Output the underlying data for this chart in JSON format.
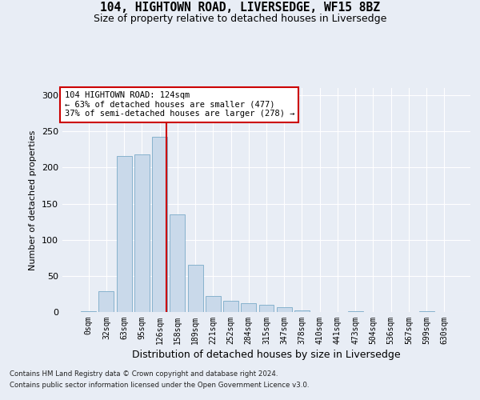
{
  "title1": "104, HIGHTOWN ROAD, LIVERSEDGE, WF15 8BZ",
  "title2": "Size of property relative to detached houses in Liversedge",
  "xlabel": "Distribution of detached houses by size in Liversedge",
  "ylabel": "Number of detached properties",
  "categories": [
    "0sqm",
    "32sqm",
    "63sqm",
    "95sqm",
    "126sqm",
    "158sqm",
    "189sqm",
    "221sqm",
    "252sqm",
    "284sqm",
    "315sqm",
    "347sqm",
    "378sqm",
    "410sqm",
    "441sqm",
    "473sqm",
    "504sqm",
    "536sqm",
    "567sqm",
    "599sqm",
    "630sqm"
  ],
  "bar_values": [
    1,
    29,
    216,
    218,
    243,
    135,
    65,
    22,
    16,
    12,
    10,
    7,
    2,
    0,
    0,
    1,
    0,
    0,
    0,
    1,
    0
  ],
  "bar_color": "#c9d9ea",
  "bar_edge_color": "#7aaac8",
  "bg_color": "#e8edf5",
  "grid_color": "#ffffff",
  "vline_color": "#cc0000",
  "annotation_line1": "104 HIGHTOWN ROAD: 124sqm",
  "annotation_line2": "← 63% of detached houses are smaller (477)",
  "annotation_line3": "37% of semi-detached houses are larger (278) →",
  "annotation_box_color": "#ffffff",
  "annotation_box_edge": "#cc0000",
  "footnote1": "Contains HM Land Registry data © Crown copyright and database right 2024.",
  "footnote2": "Contains public sector information licensed under the Open Government Licence v3.0.",
  "ylim_max": 310
}
